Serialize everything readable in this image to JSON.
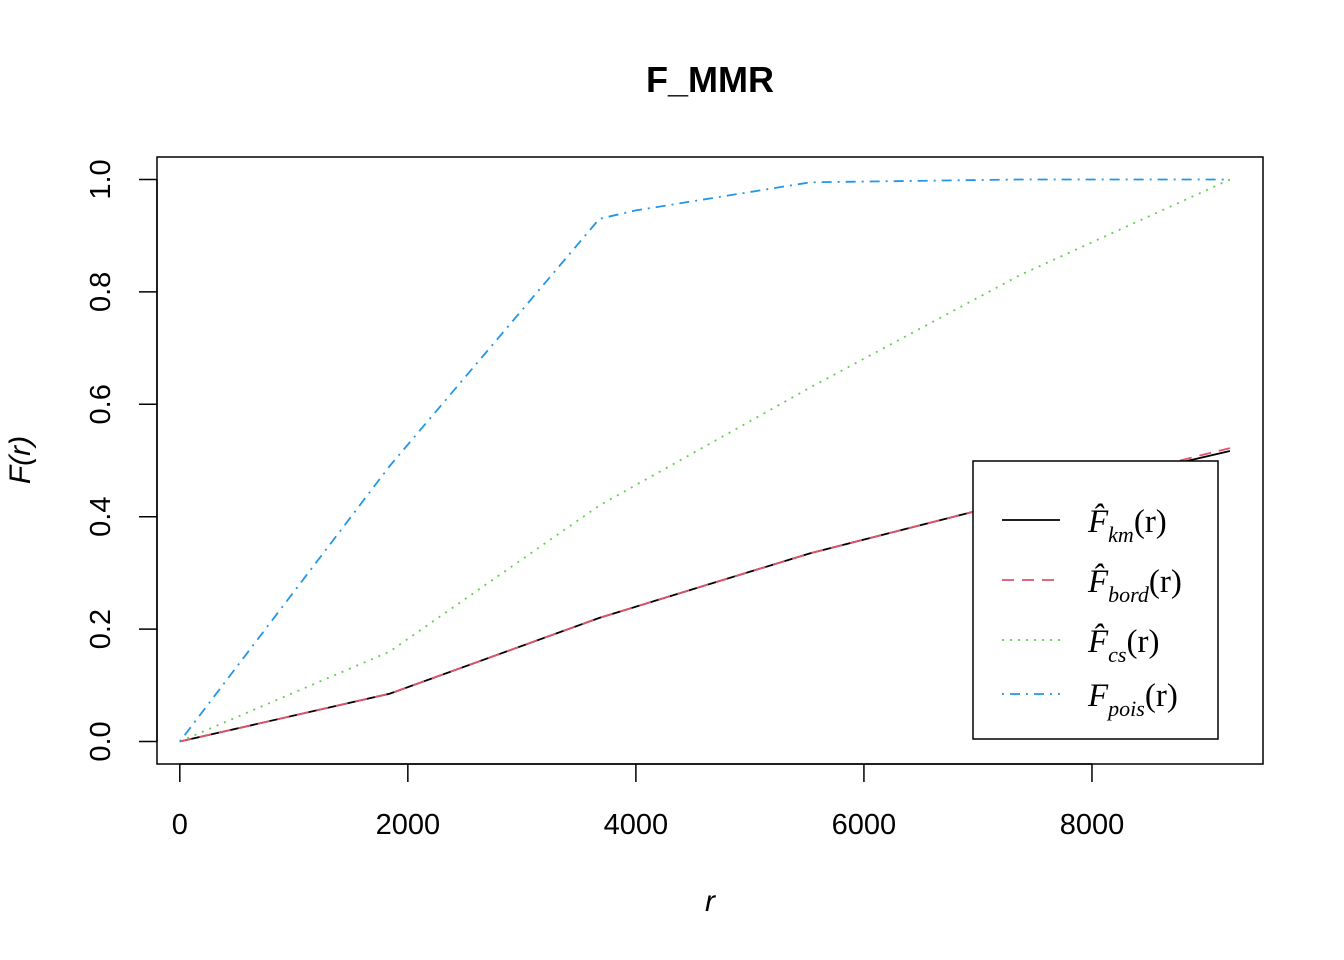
{
  "chart_data": {
    "type": "line",
    "title": "F_MMR",
    "xlabel": "r",
    "ylabel": "F(r)",
    "xlim": [
      -200,
      9500
    ],
    "ylim": [
      -0.04,
      1.04
    ],
    "x_ticks": [
      "0",
      "2000",
      "4000",
      "6000",
      "8000"
    ],
    "y_ticks": [
      "0.0",
      "0.2",
      "0.4",
      "0.6",
      "0.8",
      "1.0"
    ],
    "grid": false,
    "legend_position": "bottom-right",
    "series": [
      {
        "name": "F̂km(r)",
        "color": "#000000",
        "dash": "solid",
        "points": [
          [
            0,
            0.0
          ],
          [
            1840,
            0.085
          ],
          [
            3680,
            0.22
          ],
          [
            5530,
            0.335
          ],
          [
            7370,
            0.43
          ],
          [
            9210,
            0.517
          ]
        ]
      },
      {
        "name": "F̂bord(r)",
        "color": "#DF536B",
        "dash": "dashed",
        "points": [
          [
            0,
            0.0
          ],
          [
            1840,
            0.085
          ],
          [
            3680,
            0.22
          ],
          [
            5530,
            0.335
          ],
          [
            7370,
            0.43
          ],
          [
            9210,
            0.522
          ]
        ]
      },
      {
        "name": "F̂cs(r)",
        "color": "#61D04F",
        "dash": "dotted",
        "points": [
          [
            0,
            0.0
          ],
          [
            1840,
            0.16
          ],
          [
            3680,
            0.42
          ],
          [
            5530,
            0.63
          ],
          [
            7370,
            0.83
          ],
          [
            9210,
            1.0
          ]
        ]
      },
      {
        "name": "Fpois(r)",
        "color": "#2297E6",
        "dash": "dotdash",
        "points": [
          [
            0,
            0.0
          ],
          [
            1840,
            0.49
          ],
          [
            3680,
            0.93
          ],
          [
            4000,
            0.945
          ],
          [
            5530,
            0.995
          ],
          [
            7370,
            1.0
          ],
          [
            9210,
            1.0
          ]
        ]
      }
    ]
  }
}
